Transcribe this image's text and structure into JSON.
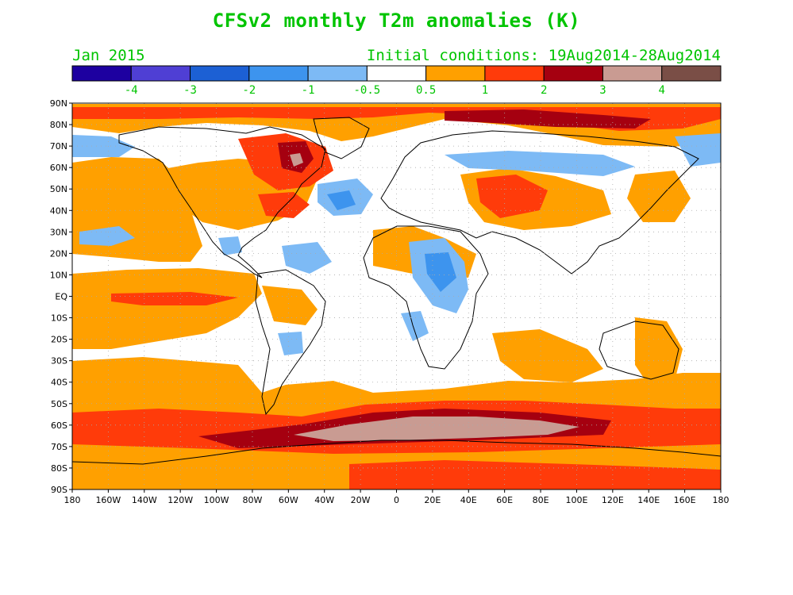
{
  "title": "CFSv2 monthly T2m anomalies (K)",
  "valid_month": "Jan 2015",
  "init_label": "Initial conditions: 19Aug2014-28Aug2014",
  "colorbar": {
    "colors": [
      "#1d00a0",
      "#4f3fd4",
      "#1c60d4",
      "#3d94ee",
      "#7dbaf5",
      "#ffffff",
      "#ffa000",
      "#ff3b0a",
      "#a50010",
      "#c99b92",
      "#7a4e46"
    ],
    "ticks": [
      "-4",
      "-3",
      "-2",
      "-1",
      "-0.5",
      "0.5",
      "1",
      "2",
      "3",
      "4"
    ]
  },
  "colors": {
    "ocean_fill": "#ffffff",
    "coast": "#000000",
    "grid": "#aaaaaa",
    "text": "#00c400"
  },
  "lat_labels": [
    "90N",
    "80N",
    "70N",
    "60N",
    "50N",
    "40N",
    "30N",
    "20N",
    "10N",
    "EQ",
    "10S",
    "20S",
    "30S",
    "40S",
    "50S",
    "60S",
    "70S",
    "80S",
    "90S"
  ],
  "lon_labels": [
    "180",
    "160W",
    "140W",
    "120W",
    "100W",
    "80W",
    "60W",
    "40W",
    "20W",
    "0",
    "20E",
    "40E",
    "60E",
    "80E",
    "100E",
    "120E",
    "140E",
    "160E",
    "180"
  ]
}
